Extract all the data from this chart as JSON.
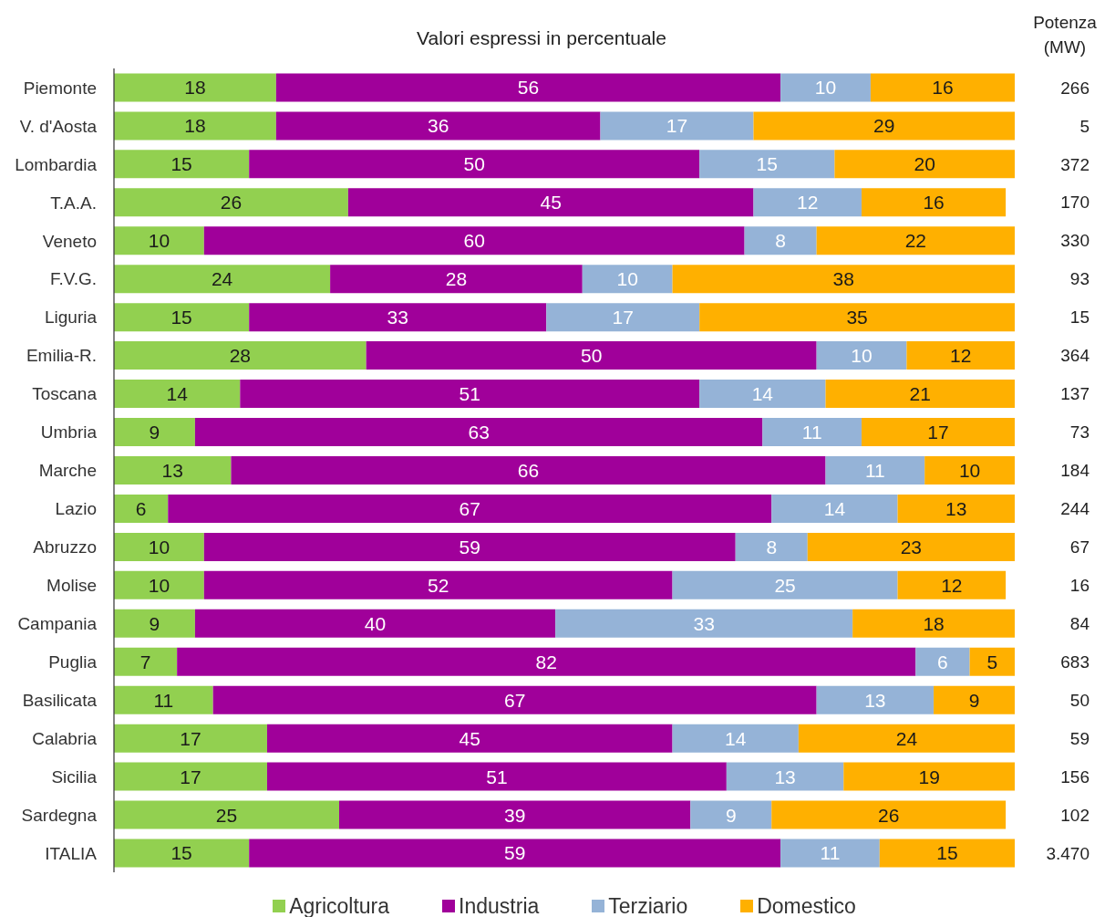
{
  "chart_data": {
    "type": "bar",
    "orientation": "horizontal",
    "stacked": true,
    "title": "Valori espressi in percentuale",
    "y2label": "Potenza (MW)",
    "categories": [
      "Piemonte",
      "V. d'Aosta",
      "Lombardia",
      "T.A.A.",
      "Veneto",
      "F.V.G.",
      "Liguria",
      "Emilia-R.",
      "Toscana",
      "Umbria",
      "Marche",
      "Lazio",
      "Abruzzo",
      "Molise",
      "Campania",
      "Puglia",
      "Basilicata",
      "Calabria",
      "Sicilia",
      "Sardegna",
      "ITALIA"
    ],
    "y2_categories": [
      "266",
      "5",
      "372",
      "170",
      "330",
      "93",
      "15",
      "364",
      "137",
      "73",
      "184",
      "244",
      "67",
      "16",
      "84",
      "683",
      "50",
      "59",
      "156",
      "102",
      "3.470"
    ],
    "series": [
      {
        "name": "Agricoltura",
        "color": "#92d050",
        "values": [
          18,
          18,
          15,
          26,
          10,
          24,
          15,
          28,
          14,
          9,
          13,
          6,
          10,
          10,
          9,
          7,
          11,
          17,
          17,
          25,
          15
        ]
      },
      {
        "name": "Industria",
        "color": "#a0009a",
        "values": [
          56,
          36,
          50,
          45,
          60,
          28,
          33,
          50,
          51,
          63,
          66,
          67,
          59,
          52,
          40,
          82,
          67,
          45,
          51,
          39,
          59
        ]
      },
      {
        "name": "Terziario",
        "color": "#95b3d7",
        "values": [
          10,
          17,
          15,
          12,
          8,
          10,
          17,
          10,
          14,
          11,
          11,
          14,
          8,
          25,
          33,
          6,
          13,
          14,
          13,
          9,
          11
        ]
      },
      {
        "name": "Domestico",
        "color": "#ffb000",
        "values": [
          16,
          29,
          20,
          16,
          22,
          38,
          35,
          12,
          21,
          17,
          10,
          13,
          23,
          12,
          18,
          5,
          9,
          24,
          19,
          26,
          15
        ]
      }
    ],
    "data_labels": true,
    "legend": "bottom"
  }
}
